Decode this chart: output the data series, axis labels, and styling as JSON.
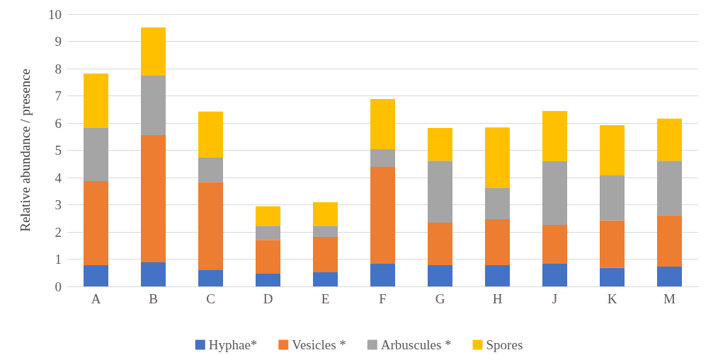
{
  "chart_data": {
    "type": "bar",
    "stacked": true,
    "ylabel": "Relative abundance / presence",
    "categories": [
      "A",
      "B",
      "C",
      "D",
      "E",
      "F",
      "G",
      "H",
      "J",
      "K",
      "M"
    ],
    "series": [
      {
        "name": "Hyphae*",
        "color": "#4472c4",
        "values": [
          0.78,
          0.88,
          0.62,
          0.47,
          0.52,
          0.83,
          0.78,
          0.78,
          0.83,
          0.68,
          0.73
        ]
      },
      {
        "name": "Vesicles *",
        "color": "#ed7d31",
        "values": [
          3.09,
          4.68,
          3.22,
          1.24,
          1.3,
          3.56,
          1.56,
          1.69,
          1.43,
          1.74,
          1.89
        ]
      },
      {
        "name": "Arbuscules *",
        "color": "#a5a5a5",
        "values": [
          1.95,
          2.18,
          0.89,
          0.52,
          0.41,
          0.65,
          2.28,
          1.14,
          2.34,
          1.66,
          2.0
        ]
      },
      {
        "name": "Spores",
        "color": "#ffc000",
        "values": [
          2.0,
          1.77,
          1.69,
          0.71,
          0.86,
          1.84,
          1.2,
          2.23,
          1.84,
          1.84,
          1.54
        ]
      }
    ],
    "ylim": [
      0,
      10
    ],
    "yticks": [
      0,
      1,
      2,
      3,
      4,
      5,
      6,
      7,
      8,
      9,
      10
    ],
    "grid": "y",
    "legend": "bottom"
  }
}
